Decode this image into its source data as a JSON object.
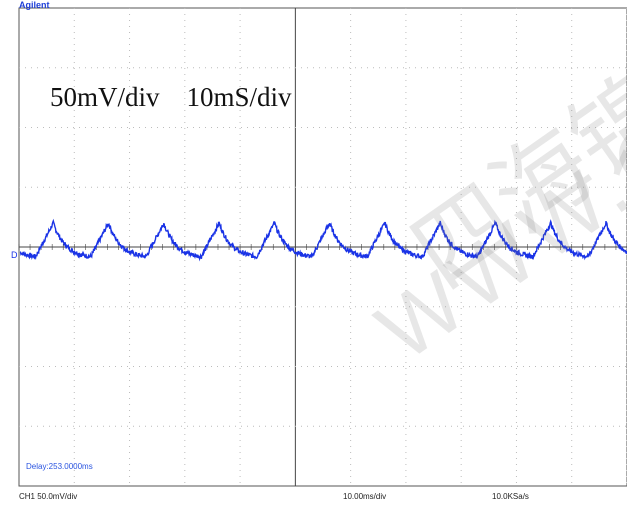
{
  "brand": "Agilent",
  "annotation": "50mV/div    10mS/div",
  "delay_label": "Delay:253.0000ms",
  "ground_marker": "D",
  "status_bar": {
    "channel_scale": "CH1 50.0mV/div",
    "timebase": "10.00ms/div",
    "sample_rate": "10.0KSa/s"
  },
  "watermark": {
    "line1": "四海锦",
    "line2": "WWW.GO"
  },
  "colors": {
    "trace": "#1a33e6",
    "grid": "#bcbcbc",
    "brand": "#1e3fd8",
    "delay": "#2a54e0"
  },
  "chart_data": {
    "type": "line",
    "title": "",
    "xlabel": "",
    "ylabel": "",
    "x_units": "ms",
    "y_units": "mV",
    "xlim": [
      -50,
      60
    ],
    "ylim": [
      -200,
      200
    ],
    "grid": true,
    "grid_style": "dotted",
    "series": [
      {
        "type": "periodic-ripple",
        "period": 10,
        "peak_offset": 3.2,
        "trough": -8,
        "peak": 20,
        "phase_x": -47,
        "noise": 2
      }
    ]
  }
}
